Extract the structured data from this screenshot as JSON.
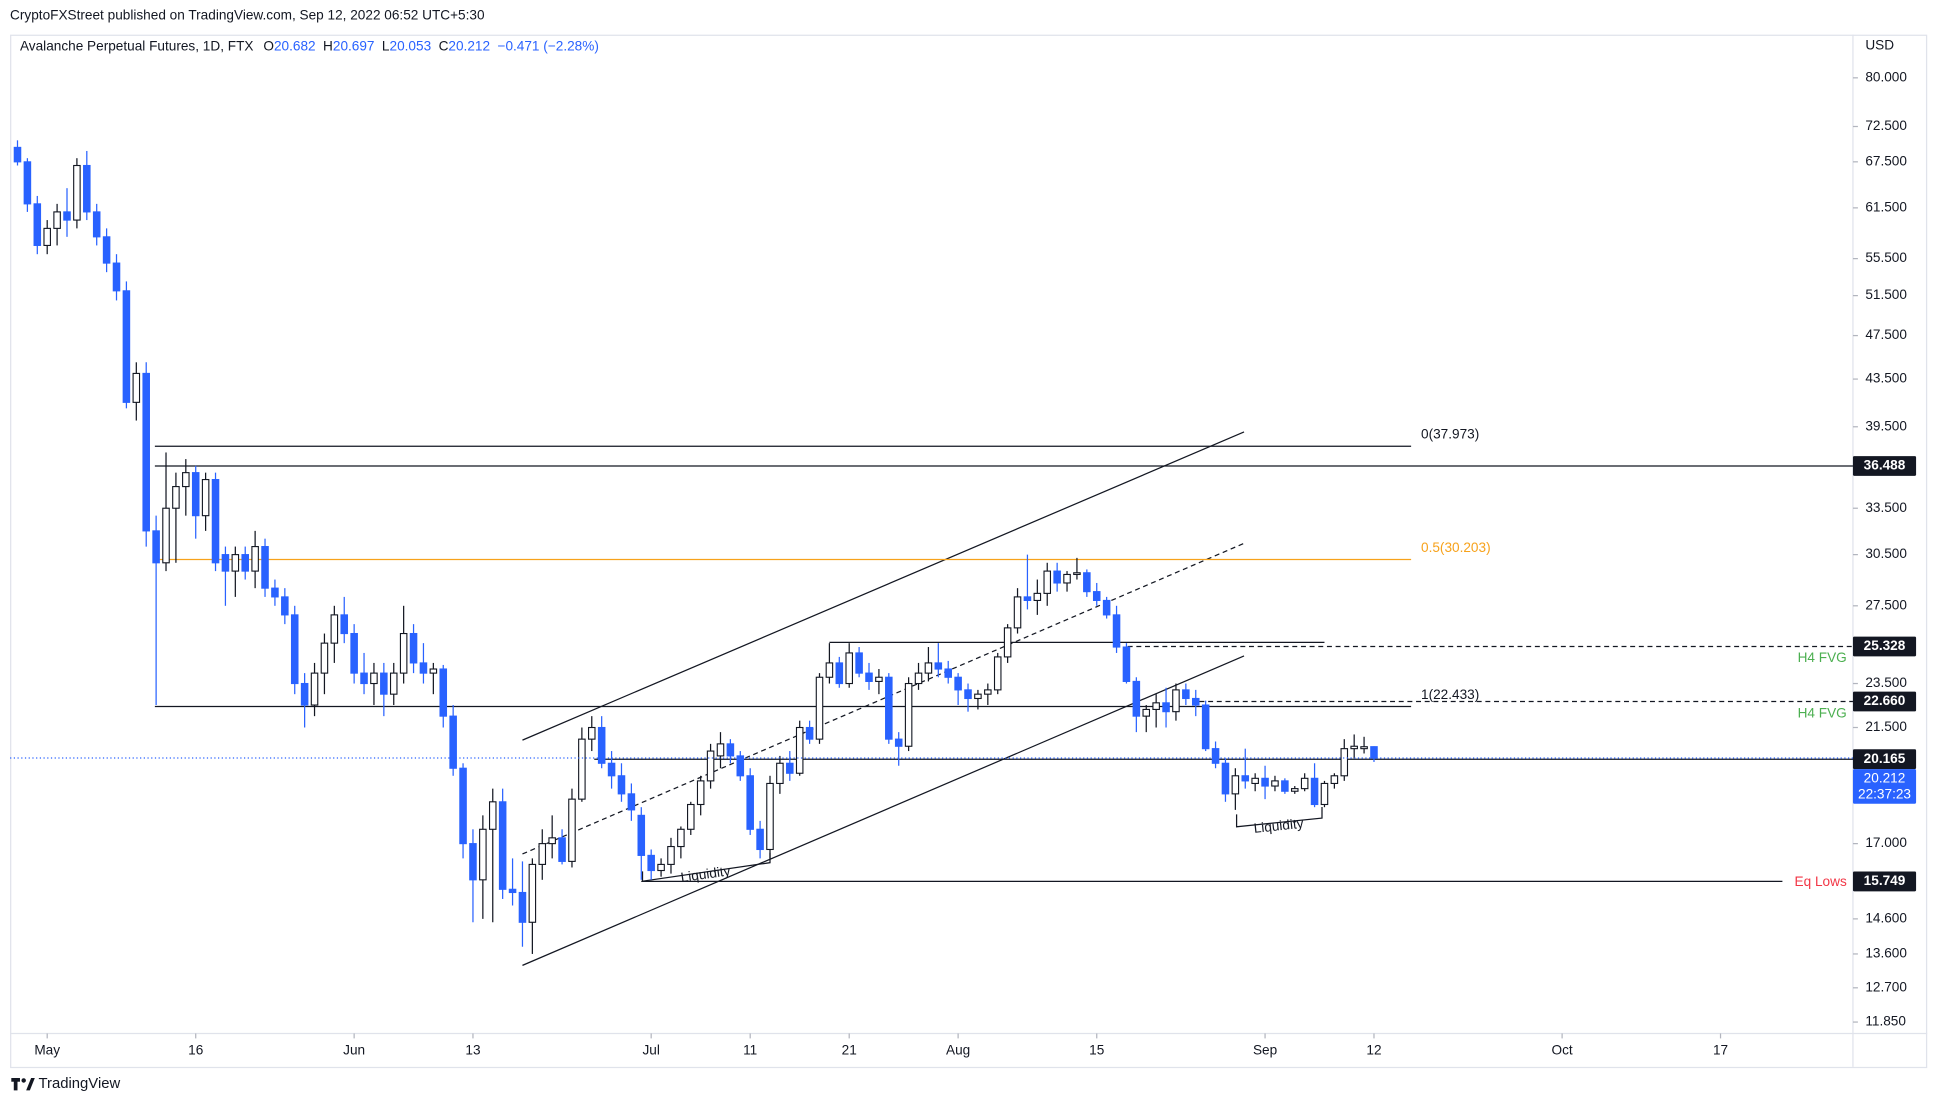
{
  "chart_data": {
    "type": "candlestick",
    "publisher": "CryptoFXStreet published on TradingView.com, Sep 12, 2022 06:52 UTC+5:30",
    "title": "Avalanche Perpetual Futures, 1D, FTX",
    "ohlc_legend": [
      {
        "key": "O",
        "text": "20.682"
      },
      {
        "key": "H",
        "text": "20.697"
      },
      {
        "key": "L",
        "text": "20.053"
      },
      {
        "key": "C",
        "text": "20.212"
      }
    ],
    "change": "−0.471 (−2.28%)",
    "currency": "USD",
    "brand": "TradingView",
    "countdown": "22:37:23",
    "up_color": "#ffffff",
    "down_color": "#2962ff",
    "log_scale": true,
    "grid": false,
    "ylim": [
      11.58,
      87.3
    ],
    "yticks": [
      {
        "value": 80,
        "label": "80.000"
      },
      {
        "value": 72.5,
        "label": "72.500"
      },
      {
        "value": 67.5,
        "label": "67.500"
      },
      {
        "value": 61.5,
        "label": "61.500"
      },
      {
        "value": 55.5,
        "label": "55.500"
      },
      {
        "value": 51.5,
        "label": "51.500"
      },
      {
        "value": 47.5,
        "label": "47.500"
      },
      {
        "value": 43.5,
        "label": "43.500"
      },
      {
        "value": 39.5,
        "label": "39.500"
      },
      {
        "value": 33.5,
        "label": "33.500"
      },
      {
        "value": 30.5,
        "label": "30.500"
      },
      {
        "value": 27.5,
        "label": "27.500"
      },
      {
        "value": 23.5,
        "label": "23.500"
      },
      {
        "value": 21.5,
        "label": "21.500"
      },
      {
        "value": 17,
        "label": "17.000"
      },
      {
        "value": 14.6,
        "label": "14.600"
      },
      {
        "value": 13.6,
        "label": "13.600"
      },
      {
        "value": 12.7,
        "label": "12.700"
      },
      {
        "value": 11.85,
        "label": "11.850"
      }
    ],
    "categories": [
      null,
      null,
      null,
      "May",
      null,
      null,
      null,
      null,
      null,
      null,
      null,
      null,
      null,
      null,
      null,
      null,
      null,
      null,
      "16",
      null,
      null,
      null,
      null,
      null,
      null,
      null,
      null,
      null,
      null,
      null,
      null,
      null,
      null,
      null,
      "Jun",
      null,
      null,
      null,
      null,
      null,
      null,
      null,
      null,
      null,
      null,
      null,
      "13",
      null,
      null,
      null,
      null,
      null,
      null,
      null,
      null,
      null,
      null,
      null,
      null,
      null,
      null,
      null,
      null,
      null,
      "Jul",
      null,
      null,
      null,
      null,
      null,
      null,
      null,
      null,
      null,
      "11",
      null,
      null,
      null,
      null,
      null,
      null,
      null,
      null,
      null,
      "21",
      null,
      null,
      null,
      null,
      null,
      null,
      null,
      null,
      null,
      null,
      "Aug",
      null,
      null,
      null,
      null,
      null,
      null,
      null,
      null,
      null,
      null,
      null,
      null,
      null,
      "15",
      null,
      null,
      null,
      null,
      null,
      null,
      null,
      null,
      null,
      null,
      null,
      null,
      null,
      null,
      null,
      null,
      "Sep",
      null,
      null,
      null,
      null,
      null,
      null,
      null,
      null,
      null,
      null,
      "12",
      null,
      null,
      null,
      null,
      null,
      null,
      null,
      null,
      null,
      null,
      null,
      null,
      null,
      null,
      null,
      null,
      null,
      null,
      "Oct",
      null,
      null,
      null,
      null,
      null,
      null,
      null,
      null,
      null,
      null,
      null,
      null,
      null,
      null,
      null,
      "17",
      null,
      null,
      null,
      null,
      null,
      null,
      null,
      null,
      null,
      null,
      null,
      null,
      null
    ],
    "open": [
      69.5,
      67.5,
      62,
      57,
      59,
      61,
      60,
      67,
      61,
      58,
      55,
      52,
      41.5,
      44,
      32,
      30,
      33.5,
      35,
      36,
      33,
      35.5,
      30.5,
      29.5,
      30.5,
      29.5,
      31,
      28.5,
      28,
      27,
      23.5,
      22.5,
      24,
      25.5,
      27,
      26,
      24,
      23.5,
      24,
      23,
      24,
      26,
      24.5,
      24,
      24.2,
      22,
      19.8,
      17,
      15.8,
      17.5,
      18.5,
      15.5,
      15.4,
      14.5,
      16.3,
      17,
      17.2,
      16.4,
      18.6,
      21,
      21.5,
      20,
      19.5,
      18.8,
      18,
      16.6,
      16.1,
      16.3,
      16.9,
      17.5,
      18.4,
      19.3,
      20.3,
      20.8,
      20.3,
      19.5,
      17.5,
      16.8,
      19.2,
      20,
      19.6,
      21.5,
      21,
      23.8,
      24.5,
      23.5,
      25,
      24,
      23.6,
      23.8,
      21,
      20.7,
      23.5,
      24,
      24.5,
      24.2,
      23.8,
      23.2,
      22.8,
      23,
      23.2,
      24.8,
      26.3,
      28,
      27.8,
      28.2,
      29.5,
      28.8,
      29.3,
      29.4,
      28.3,
      27.8,
      27,
      25.3,
      23.6,
      22,
      22.3,
      22.6,
      22.2,
      23.2,
      22.8,
      22.5,
      20.6,
      20,
      18.8,
      19.5,
      19.2,
      19.4,
      19.1,
      19.3,
      18.9,
      19,
      19.4,
      18.4,
      19.2,
      19.5,
      20.6,
      20.6,
      20.682,
      null,
      null,
      null,
      null,
      null,
      null,
      null,
      null,
      null,
      null,
      null,
      null,
      null,
      null,
      null,
      null,
      null,
      null,
      null,
      null,
      null,
      null,
      null,
      null,
      null,
      null,
      null,
      null,
      null,
      null,
      null,
      null,
      null,
      null,
      null,
      null,
      null,
      null,
      null,
      null,
      null,
      null,
      null,
      null,
      null,
      null,
      null,
      null
    ],
    "high": [
      70.5,
      68,
      63,
      60,
      62,
      64,
      68,
      69,
      62,
      59,
      56,
      53,
      45,
      45,
      33,
      37.5,
      36,
      37,
      36.5,
      36,
      36,
      31,
      31,
      31,
      32,
      31.5,
      29,
      28.5,
      27.5,
      24,
      24.5,
      26,
      27.5,
      28,
      26.5,
      25,
      24.5,
      24.5,
      24.5,
      27.5,
      26.5,
      25.5,
      24.5,
      24.4,
      22.5,
      20,
      17.5,
      18,
      19,
      19,
      16.5,
      16.4,
      16.5,
      17.5,
      18,
      17.5,
      19,
      21.5,
      22,
      22,
      20.5,
      20,
      19.2,
      18.3,
      16.8,
      16.5,
      17.2,
      17.6,
      18.5,
      19.5,
      20.8,
      21.3,
      21,
      20.5,
      19.8,
      17.8,
      19.5,
      20.3,
      20.5,
      21.8,
      21.8,
      24,
      25.5,
      24.8,
      25.5,
      25.3,
      24.5,
      24.2,
      24,
      21.3,
      23.8,
      24.5,
      25.3,
      25.5,
      24.6,
      24,
      23.5,
      23.2,
      23.5,
      25,
      26.5,
      28.5,
      30.5,
      29,
      30,
      30,
      29.5,
      30.3,
      29.6,
      28.8,
      28,
      27.5,
      25.5,
      23.8,
      22.5,
      23,
      23.3,
      23.5,
      23.5,
      23.2,
      22.7,
      20.9,
      20.2,
      19.8,
      20.6,
      19.6,
      19.9,
      19.5,
      19.4,
      19.1,
      19.6,
      20,
      19.3,
      19.6,
      21,
      21.2,
      21.1,
      20.697,
      null,
      null,
      null,
      null,
      null,
      null,
      null,
      null,
      null,
      null,
      null,
      null,
      null,
      null,
      null,
      null,
      null,
      null,
      null,
      null,
      null,
      null,
      null,
      null,
      null,
      null,
      null,
      null,
      null,
      null,
      null,
      null,
      null,
      null,
      null,
      null,
      null,
      null,
      null,
      null,
      null,
      null,
      null,
      null,
      null,
      null,
      null,
      null
    ],
    "low": [
      67,
      61,
      56,
      56,
      57,
      58,
      59,
      60,
      57,
      54,
      51,
      41,
      40,
      31,
      22.5,
      29.5,
      30,
      33,
      31.5,
      32,
      29.5,
      27.5,
      28,
      29,
      28.5,
      28,
      27.5,
      26.5,
      23,
      21.5,
      22,
      23,
      24.5,
      25.5,
      23.5,
      23,
      22.5,
      22,
      22.5,
      23.5,
      24,
      23.5,
      23,
      21.5,
      19.5,
      16.5,
      14.5,
      14.6,
      14.5,
      15.2,
      15,
      13.8,
      13.6,
      15.8,
      16.5,
      16.3,
      16.2,
      18.5,
      20.5,
      19.8,
      19,
      18.5,
      17.8,
      15.8,
      15.8,
      15.9,
      16,
      16.5,
      17.3,
      18,
      19,
      19.8,
      20,
      19.3,
      17.3,
      16.5,
      16.5,
      18.8,
      19.3,
      19.5,
      20.8,
      20.8,
      23.5,
      23.3,
      23.3,
      23.8,
      23.2,
      23,
      20.8,
      19.9,
      20.5,
      23.2,
      23.6,
      23.8,
      23.5,
      22.5,
      22.2,
      22.3,
      22.5,
      23,
      24.5,
      26,
      27.3,
      27,
      27.5,
      28.3,
      28.3,
      29,
      28,
      27.5,
      26.8,
      25,
      23.5,
      21.3,
      21.3,
      21.5,
      21.5,
      21.8,
      22.5,
      22,
      20.5,
      19.8,
      18.5,
      18.2,
      19,
      18.9,
      18.6,
      18.9,
      18.8,
      18.8,
      18.9,
      18.3,
      18.3,
      19,
      19.3,
      20.2,
      20.4,
      20.053,
      null,
      null,
      null,
      null,
      null,
      null,
      null,
      null,
      null,
      null,
      null,
      null,
      null,
      null,
      null,
      null,
      null,
      null,
      null,
      null,
      null,
      null,
      null,
      null,
      null,
      null,
      null,
      null,
      null,
      null,
      null,
      null,
      null,
      null,
      null,
      null,
      null,
      null,
      null,
      null,
      null,
      null,
      null,
      null,
      null,
      null,
      null,
      null
    ],
    "close": [
      67.5,
      62,
      57,
      59,
      61,
      60,
      67,
      61,
      58,
      55,
      52,
      41.5,
      44,
      32,
      30,
      33.5,
      35,
      36,
      33,
      35.5,
      30,
      29.5,
      30.5,
      29.5,
      31,
      28.5,
      28,
      27,
      23.5,
      22.5,
      24,
      25.5,
      27,
      26,
      24,
      23.5,
      24,
      23,
      24,
      26,
      24.5,
      24,
      24.2,
      22,
      19.8,
      17,
      15.8,
      17.5,
      18.5,
      15.5,
      15.4,
      14.5,
      16.3,
      17,
      17.2,
      16.4,
      18.6,
      21,
      21.5,
      20,
      19.5,
      18.8,
      18.2,
      16.6,
      16.1,
      16.3,
      16.9,
      17.5,
      18.4,
      19.3,
      20.5,
      20.8,
      20.3,
      19.5,
      17.5,
      16.8,
      19.2,
      20,
      19.6,
      21.5,
      21,
      23.8,
      24.5,
      23.5,
      25,
      24,
      23.6,
      23.8,
      21,
      20.7,
      23.5,
      24,
      24.5,
      24.2,
      23.8,
      23.2,
      22.8,
      23,
      23.2,
      24.8,
      26.3,
      28,
      27.8,
      28.2,
      29.5,
      28.8,
      29.3,
      29.4,
      28.3,
      27.8,
      27,
      25.3,
      23.6,
      22,
      22.3,
      22.6,
      22.2,
      23.2,
      22.8,
      22.5,
      20.6,
      20,
      18.8,
      19.5,
      19.3,
      19.4,
      19.1,
      19.3,
      18.9,
      19,
      19.4,
      18.4,
      19.2,
      19.5,
      20.6,
      20.7,
      20.68,
      20.212,
      null,
      null,
      null,
      null,
      null,
      null,
      null,
      null,
      null,
      null,
      null,
      null,
      null,
      null,
      null,
      null,
      null,
      null,
      null,
      null,
      null,
      null,
      null,
      null,
      null,
      null,
      null,
      null,
      null,
      null,
      null,
      null,
      null,
      null,
      null,
      null,
      null,
      null,
      null,
      null,
      null,
      null,
      null,
      null,
      null,
      null,
      null,
      null
    ],
    "levels": [
      {
        "value": 37.973,
        "label": "0(37.973)",
        "color": "#131722"
      },
      {
        "value": 30.203,
        "label": "0.5(30.203)",
        "color": "#f7a21b"
      },
      {
        "value": 22.433,
        "label": "1(22.433)",
        "color": "#131722"
      }
    ],
    "price_lines": [
      {
        "value": 36.488,
        "style": "solid"
      },
      {
        "value": 25.328,
        "style": "dashed"
      },
      {
        "value": 22.66,
        "label": "22.660",
        "style": "dashed"
      },
      {
        "value": 20.165,
        "style": "solid"
      },
      {
        "value": 15.749,
        "style": "solid"
      }
    ],
    "annotations": [
      {
        "text": "H4 FVG",
        "color": "#4caf50"
      },
      {
        "text": "H4 FVG",
        "color": "#4caf50"
      },
      {
        "text": "Eq Lows",
        "color": "#f23645"
      },
      {
        "text": "Liquidity",
        "color": "#131722"
      },
      {
        "text": "Liquidity",
        "color": "#131722"
      }
    ]
  }
}
